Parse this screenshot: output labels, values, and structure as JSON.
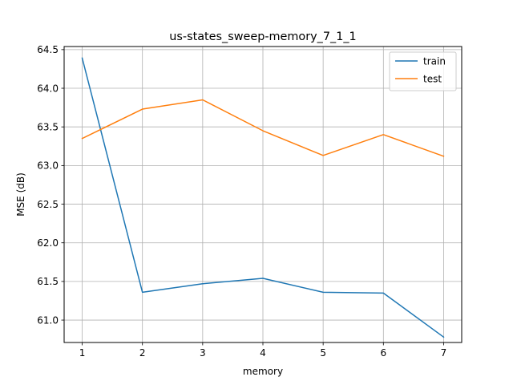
{
  "chart_data": {
    "type": "line",
    "title": "us-states_sweep-memory_7_1_1",
    "xlabel": "memory",
    "ylabel": "MSE (dB)",
    "x": [
      1,
      2,
      3,
      4,
      5,
      6,
      7
    ],
    "xticks": [
      "1",
      "2",
      "3",
      "4",
      "5",
      "6",
      "7"
    ],
    "yticks": [
      "61.0",
      "61.5",
      "62.0",
      "62.5",
      "63.0",
      "63.5",
      "64.0",
      "64.5"
    ],
    "xlim": [
      0.7,
      7.3
    ],
    "ylim": [
      60.71,
      64.54
    ],
    "grid": true,
    "legend_position": "top-right",
    "series": [
      {
        "name": "train",
        "color": "#1f77b4",
        "values": [
          64.39,
          61.36,
          61.47,
          61.54,
          61.36,
          61.35,
          60.78
        ]
      },
      {
        "name": "test",
        "color": "#ff7f0e",
        "values": [
          63.35,
          63.73,
          63.85,
          63.45,
          63.13,
          63.4,
          63.12
        ]
      }
    ]
  }
}
